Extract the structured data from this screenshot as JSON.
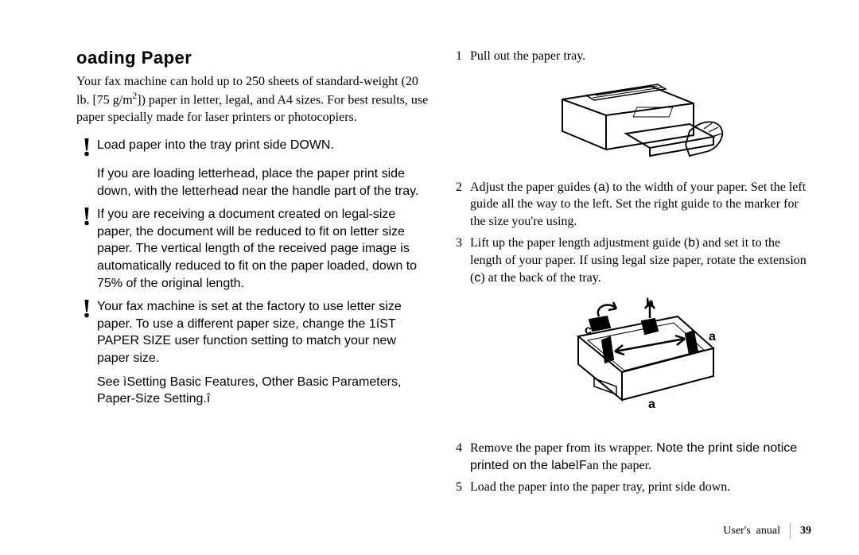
{
  "title": "oading Paper",
  "intro_html": "Your fax machine can hold up to 250 sheets of standard-weight (20 lb. [75 g/m<sup>2</sup>]) paper in letter, legal, and A4 sizes. For best results, use paper specially made for laser printers or photocopiers.",
  "notes": [
    "Load paper into the tray print side DOWN.",
    "If you are loading letterhead, place the paper print side down, with the letterhead near the handle part of the tray.",
    "If you are receiving a document created on legal-size paper, the document will be reduced to fit on letter size paper. The vertical length of the received page image is automatically reduced to fit on the paper loaded, down to 75% of the original length.",
    "Your fax machine is set at the factory to use letter size paper. To use a different paper size, change the 1íST PAPER SIZE user function setting to match your new paper size."
  ],
  "note_followup": "See ìSetting Basic Features, Other Basic Parameters, Paper-Size Setting.î",
  "steps": {
    "s1": "Pull out the paper tray.",
    "s2_html": "Adjust the paper guides (<span class='sans'>a</span>) to the width of your paper. Set the left guide all the way to the left. Set the right guide to the marker for the size you're using.",
    "s3_html": "Lift up the paper length adjustment guide (<span class='sans'>b</span>) and set it to the length of your paper. If using legal size paper, rotate the extension (<span class='sans'>c</span>) at the back of the tray.",
    "s4_html": "Remove the paper from its wrapper. <span class='sans'>Note the  print side notice printed on the labe</span>l<span class='sans'>F</span>an the paper.",
    "s5": "Load the paper into the paper tray, print side down."
  },
  "labels": {
    "a": "a",
    "b": "b",
    "c": "c"
  },
  "footer": {
    "left": "User's",
    "mid": "anual",
    "page": "39"
  },
  "style": {
    "title_fontsize": 22,
    "body_fontsize": 16,
    "note_font": "Arial",
    "serif_font": "Georgia",
    "bang_fontsize": 34,
    "bg": "#ffffff",
    "text": "#000000",
    "footer_sep": "#a0a0a0"
  }
}
